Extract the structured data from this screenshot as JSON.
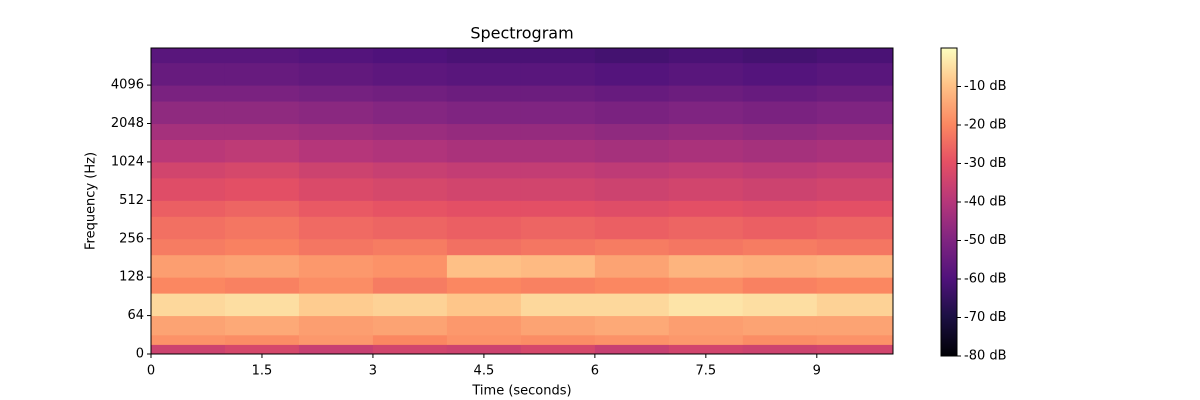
{
  "chart_data": {
    "type": "heatmap",
    "title": "Spectrogram",
    "x_label": "Time (seconds)",
    "y_label": "Frequency (Hz)",
    "x_edges": [
      0,
      1,
      2,
      3,
      4,
      5,
      6,
      7,
      8,
      9,
      10.03
    ],
    "y_edges": [
      0,
      16,
      32,
      64,
      96,
      128,
      192,
      256,
      384,
      512,
      768,
      1024,
      1536,
      2048,
      3072,
      4096,
      6144,
      8000
    ],
    "z": [
      [
        -35,
        -33,
        -36,
        -34,
        -35,
        -33,
        -36,
        -34,
        -35,
        -34
      ],
      [
        -18,
        -19,
        -17,
        -20,
        -18,
        -19,
        -18,
        -17,
        -19,
        -18
      ],
      [
        -15,
        -14,
        -16,
        -15,
        -17,
        -15,
        -14,
        -16,
        -15,
        -15
      ],
      [
        -6,
        -5,
        -8,
        -7,
        -9,
        -6,
        -6,
        -4,
        -5,
        -7
      ],
      [
        -20,
        -21,
        -19,
        -22,
        -20,
        -21,
        -20,
        -19,
        -21,
        -20
      ],
      [
        -16,
        -15,
        -17,
        -18,
        -10,
        -11,
        -15,
        -12,
        -13,
        -12
      ],
      [
        -22,
        -21,
        -23,
        -22,
        -24,
        -23,
        -22,
        -23,
        -22,
        -23
      ],
      [
        -24,
        -23,
        -25,
        -26,
        -27,
        -26,
        -27,
        -26,
        -27,
        -26
      ],
      [
        -27,
        -26,
        -28,
        -29,
        -30,
        -30,
        -31,
        -30,
        -31,
        -30
      ],
      [
        -31,
        -30,
        -32,
        -33,
        -34,
        -34,
        -35,
        -34,
        -35,
        -34
      ],
      [
        -34,
        -33,
        -35,
        -36,
        -37,
        -37,
        -38,
        -37,
        -38,
        -37
      ],
      [
        -39,
        -38,
        -40,
        -41,
        -42,
        -42,
        -43,
        -42,
        -43,
        -42
      ],
      [
        -43,
        -43,
        -44,
        -45,
        -46,
        -46,
        -47,
        -46,
        -47,
        -46
      ],
      [
        -47,
        -47,
        -48,
        -49,
        -50,
        -50,
        -51,
        -50,
        -51,
        -50
      ],
      [
        -51,
        -51,
        -52,
        -53,
        -54,
        -54,
        -55,
        -54,
        -55,
        -54
      ],
      [
        -55,
        -55,
        -56,
        -57,
        -58,
        -58,
        -59,
        -58,
        -59,
        -58
      ],
      [
        -58,
        -58,
        -59,
        -60,
        -61,
        -61,
        -62,
        -61,
        -62,
        -61
      ]
    ],
    "xlim": [
      0,
      10.03
    ],
    "ylim": [
      0,
      8000
    ],
    "xticks": [
      0,
      1.5,
      3,
      4.5,
      6,
      7.5,
      9
    ],
    "yticks": [
      0,
      64,
      128,
      256,
      512,
      1024,
      2048,
      4096
    ],
    "yscale": "symlog",
    "linthresh": 64,
    "colormap": "magma",
    "clim": [
      -80,
      0
    ],
    "cticks": [
      {
        "value": -80,
        "label": "-80 dB"
      },
      {
        "value": -70,
        "label": "-70 dB"
      },
      {
        "value": -60,
        "label": "-60 dB"
      },
      {
        "value": -50,
        "label": "-50 dB"
      },
      {
        "value": -40,
        "label": "-40 dB"
      },
      {
        "value": -30,
        "label": "-30 dB"
      },
      {
        "value": -20,
        "label": "-20 dB"
      },
      {
        "value": -10,
        "label": "-10 dB"
      }
    ]
  }
}
